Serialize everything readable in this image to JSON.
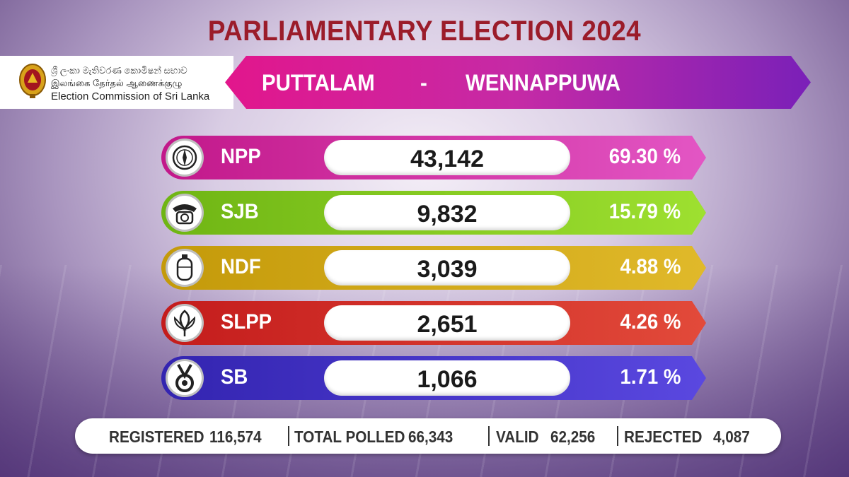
{
  "title": "PARLIAMENTARY ELECTION 2024",
  "commission": {
    "line_sinhala": "ශ්‍රී ලංකා මැතිවරණ කොමිෂන් සභාව",
    "line_tamil": "இலங்கை தேர்தல் ஆணைக்குழு",
    "line_english": "Election Commission of Sri Lanka"
  },
  "banner": {
    "district": "PUTTALAM",
    "dash": "-",
    "division": "WENNAPPUWA"
  },
  "results": [
    {
      "party": "NPP",
      "votes": "43,142",
      "percent": "69.30 %",
      "symbol": "compass-icon",
      "color_from": "#c2188a",
      "color_to": "#e356c4"
    },
    {
      "party": "SJB",
      "votes": "9,832",
      "percent": "15.79 %",
      "symbol": "telephone-icon",
      "color_from": "#6fb514",
      "color_to": "#9ee030"
    },
    {
      "party": "NDF",
      "votes": "3,039",
      "percent": "4.88 %",
      "symbol": "gas-cylinder-icon",
      "color_from": "#c49a0a",
      "color_to": "#e0b92a"
    },
    {
      "party": "SLPP",
      "votes": "2,651",
      "percent": "4.26 %",
      "symbol": "lotus-bud-icon",
      "color_from": "#c41c1c",
      "color_to": "#e24a3a"
    },
    {
      "party": "SB",
      "votes": "1,066",
      "percent": "1.71 %",
      "symbol": "medal-icon",
      "color_from": "#3324b0",
      "color_to": "#5a48e0"
    }
  ],
  "footer": {
    "registered_label": "REGISTERED",
    "registered_value": "116,574",
    "polled_label": "TOTAL POLLED",
    "polled_value": "66,343",
    "valid_label": "VALID",
    "valid_value": "62,256",
    "rejected_label": "REJECTED",
    "rejected_value": "4,087"
  }
}
